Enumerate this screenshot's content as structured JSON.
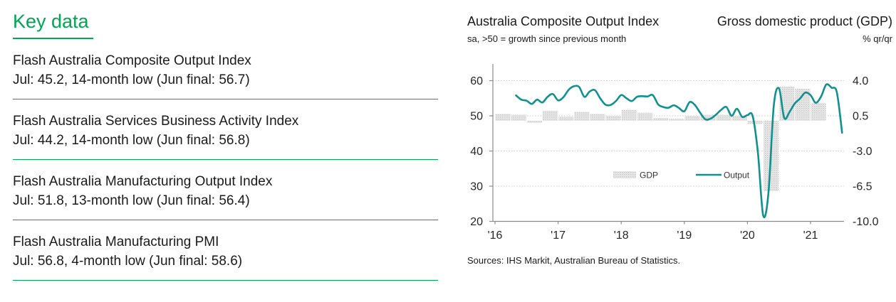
{
  "colors": {
    "accent": "#00a651",
    "line": "#10918f",
    "bar_fill": "#d9d9d9",
    "grid": "#c8c8c8"
  },
  "left_panel": {
    "heading": "Key data",
    "items": [
      {
        "title": "Flash Australia Composite Output Index",
        "detail": "Jul: 45.2, 14-month low (Jun final: 56.7)"
      },
      {
        "title": "Flash Australia Services Business Activity Index",
        "detail": "Jul: 44.2, 14-month low (Jun final: 56.8)"
      },
      {
        "title": "Flash Australia Manufacturing Output Index",
        "detail": "Jul: 51.8, 13-month low (Jun final: 56.4)"
      },
      {
        "title": "Flash Australia Manufacturing PMI",
        "detail": "Jul: 56.8, 4-month low (Jun final: 58.6)"
      }
    ]
  },
  "chart_panel": {
    "title_left": "Australia Composite Output Index",
    "subtitle_left": "sa, >50 = growth since previous month",
    "title_right": "Gross domestic product (GDP)",
    "subtitle_right": "% qr/qr",
    "source": "Sources: IHS Markit, Australian Bureau of Statistics."
  },
  "chart_data": {
    "type": "line+bar",
    "title": "Australia Composite Output Index vs Gross domestic product (GDP)",
    "x_axis": {
      "tick_labels": [
        "'16",
        "'17",
        "'18",
        "'19",
        "'20",
        "'21"
      ],
      "start_month": "Jan 2016",
      "end_month": "Jul 2021"
    },
    "left_axis": {
      "label": "Composite Output Index, sa, >50 = growth since previous month",
      "ticks": [
        20,
        30,
        40,
        50,
        60
      ],
      "tick_labels": [
        "20",
        "30",
        "40",
        "50",
        "60"
      ],
      "gridlines": [
        30,
        40,
        50,
        60
      ],
      "range": [
        20,
        64.75
      ]
    },
    "right_axis": {
      "label": "GDP, % qr/qr",
      "ticks": [
        -10.0,
        -6.5,
        -3.0,
        0.5,
        4.0
      ],
      "tick_labels": [
        "-10.0",
        "-6.5",
        "-3.0",
        "0.5",
        "4.0"
      ]
    },
    "legend": [
      {
        "label": "GDP",
        "swatch": "bar"
      },
      {
        "label": "Output",
        "swatch": "line"
      }
    ],
    "series": [
      {
        "name": "Output",
        "type": "line",
        "axis": "left",
        "color": "#10918f",
        "start_month": "May 2016",
        "start_month_index": 4,
        "values": [
          55.8,
          54.6,
          54.3,
          53.4,
          54.6,
          53.8,
          55.4,
          56.2,
          54.4,
          55.3,
          57.4,
          58.4,
          58.2,
          55.4,
          56.9,
          57.3,
          55.0,
          53.2,
          53.1,
          54.2,
          55.9,
          55.0,
          54.2,
          55.4,
          55.6,
          55.5,
          55.9,
          53.3,
          52.5,
          52.3,
          53.0,
          52.2,
          51.3,
          53.9,
          53.1,
          50.9,
          49.0,
          49.2,
          50.3,
          51.7,
          52.5,
          50.0,
          52.0,
          49.7,
          50.2,
          49.9,
          39.4,
          21.7,
          28.1,
          52.7,
          57.8,
          49.4,
          51.1,
          53.5,
          54.9,
          56.6,
          55.9,
          53.7,
          55.5,
          58.9,
          58.0,
          56.7,
          45.2
        ]
      },
      {
        "name": "GDP",
        "type": "bar",
        "axis": "right",
        "color": "#d9d9d9",
        "start_quarter": "2016 Q1",
        "values": [
          0.7,
          0.6,
          -0.2,
          1.0,
          0.4,
          0.9,
          0.7,
          0.5,
          1.1,
          0.8,
          0.3,
          0.2,
          0.5,
          0.6,
          0.6,
          0.5,
          -0.3,
          -7.0,
          3.4,
          3.2,
          1.8
        ]
      }
    ]
  }
}
